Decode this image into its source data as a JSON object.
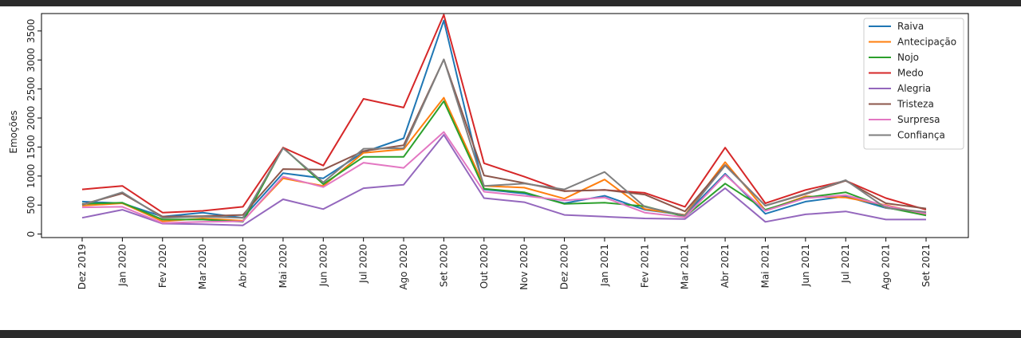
{
  "chart_data": {
    "type": "line",
    "ylabel": "Emoções",
    "ylim": [
      -60,
      3800
    ],
    "yticks": [
      0,
      500,
      1000,
      1500,
      2000,
      2500,
      3000,
      3500
    ],
    "yticklabels": [
      "0",
      "500",
      "1000",
      "1500",
      "2000",
      "2500",
      "3000",
      "3500"
    ],
    "legend_position": "top-right",
    "categories": [
      "Dez 2019",
      "Jan 2020",
      "Fev 2020",
      "Mar 2020",
      "Abr 2020",
      "Mai 2020",
      "Jun 2020",
      "Jul 2020",
      "Ago 2020",
      "Set 2020",
      "Out 2020",
      "Nov 2020",
      "Dez 2020",
      "Jan 2021",
      "Fev 2021",
      "Mar 2021",
      "Abr 2021",
      "Mai 2021",
      "Jun 2021",
      "Jul 2021",
      "Ago 2021",
      "Set 2021"
    ],
    "series": [
      {
        "name": "Raiva",
        "color": "#1f77b4",
        "values": [
          560,
          530,
          300,
          370,
          280,
          1050,
          960,
          1410,
          1650,
          3680,
          770,
          700,
          530,
          660,
          420,
          330,
          1040,
          350,
          560,
          650,
          450,
          370
        ]
      },
      {
        "name": "Antecipação",
        "color": "#ff7f0e",
        "values": [
          490,
          530,
          220,
          270,
          230,
          960,
          830,
          1400,
          1460,
          2350,
          830,
          800,
          610,
          940,
          430,
          330,
          1240,
          410,
          650,
          630,
          500,
          340
        ]
      },
      {
        "name": "Nojo",
        "color": "#2ca02c",
        "values": [
          520,
          540,
          250,
          250,
          210,
          1490,
          860,
          1330,
          1330,
          2290,
          780,
          720,
          520,
          540,
          480,
          300,
          870,
          420,
          630,
          720,
          460,
          320
        ]
      },
      {
        "name": "Medo",
        "color": "#d62728",
        "values": [
          770,
          830,
          370,
          400,
          470,
          1490,
          1180,
          2330,
          2180,
          3780,
          1220,
          990,
          740,
          760,
          710,
          470,
          1490,
          530,
          760,
          920,
          620,
          420
        ]
      },
      {
        "name": "Alegria",
        "color": "#9467bd",
        "values": [
          280,
          420,
          180,
          170,
          150,
          600,
          430,
          790,
          850,
          1710,
          620,
          550,
          330,
          300,
          270,
          260,
          790,
          210,
          340,
          390,
          250,
          250
        ]
      },
      {
        "name": "Tristeza",
        "color": "#8c564b",
        "values": [
          510,
          700,
          300,
          310,
          330,
          1120,
          1110,
          1430,
          1530,
          3010,
          1010,
          880,
          740,
          760,
          680,
          390,
          1190,
          490,
          690,
          920,
          530,
          440
        ]
      },
      {
        "name": "Surpresa",
        "color": "#e377c2",
        "values": [
          460,
          470,
          190,
          210,
          220,
          990,
          810,
          1230,
          1140,
          1760,
          730,
          660,
          580,
          630,
          370,
          290,
          1020,
          400,
          620,
          670,
          490,
          350
        ]
      },
      {
        "name": "Confiança",
        "color": "#7f7f7f",
        "values": [
          500,
          720,
          280,
          300,
          280,
          1480,
          890,
          1470,
          1480,
          3010,
          830,
          870,
          770,
          1070,
          470,
          320,
          1180,
          490,
          700,
          930,
          450,
          380
        ]
      }
    ]
  }
}
